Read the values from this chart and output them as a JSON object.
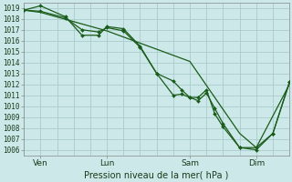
{
  "background_color": "#cce8e8",
  "grid_color": "#aacccc",
  "line_color": "#1a5c1a",
  "marker_color": "#1a5c1a",
  "title": "Pression niveau de la mer( hPa )",
  "ylim": [
    1005.5,
    1019.5
  ],
  "xlim": [
    0,
    16
  ],
  "yticks": [
    1006,
    1007,
    1008,
    1009,
    1010,
    1011,
    1012,
    1013,
    1014,
    1015,
    1016,
    1017,
    1018,
    1019
  ],
  "xtick_labels": [
    "Ven",
    "Lun",
    "Sam",
    "Dim"
  ],
  "xtick_positions": [
    1,
    5,
    10,
    14
  ],
  "line1_x": [
    0,
    1,
    2.5,
    3.5,
    4.5,
    5,
    6,
    7,
    8,
    9,
    9.5,
    10,
    10.5,
    11,
    11.5,
    12,
    13,
    14,
    15,
    16
  ],
  "line1_y": [
    1018.8,
    1018.7,
    1018.1,
    1017.0,
    1016.8,
    1017.2,
    1016.9,
    1015.4,
    1013.0,
    1011.0,
    1011.1,
    1010.8,
    1010.5,
    1011.2,
    1009.8,
    1008.4,
    1006.2,
    1006.2,
    1007.5,
    1012.2
  ],
  "line2_x": [
    0,
    1,
    2.5,
    3.5,
    4.5,
    5,
    6,
    7,
    8,
    9,
    9.5,
    10,
    10.5,
    11,
    11.5,
    12,
    13,
    14,
    15,
    16
  ],
  "line2_y": [
    1018.8,
    1019.2,
    1018.2,
    1016.5,
    1016.5,
    1017.3,
    1017.1,
    1015.5,
    1013.0,
    1012.3,
    1011.5,
    1010.8,
    1010.8,
    1011.5,
    1009.3,
    1008.1,
    1006.2,
    1006.0,
    1007.5,
    1012.2
  ],
  "line3_x": [
    0,
    1,
    5,
    10,
    13,
    14,
    16
  ],
  "line3_y": [
    1018.8,
    1018.6,
    1016.9,
    1014.1,
    1007.5,
    1006.2,
    1012.0
  ],
  "ylabel_fontsize": 5.5,
  "xlabel_fontsize": 6.5,
  "title_fontsize": 7.0
}
